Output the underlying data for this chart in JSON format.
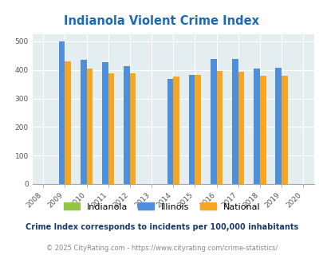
{
  "title": "Indianola Violent Crime Index",
  "years": [
    2009,
    2010,
    2011,
    2012,
    2014,
    2015,
    2016,
    2017,
    2018,
    2019
  ],
  "indianola": [
    0,
    0,
    0,
    0,
    0,
    0,
    0,
    0,
    0,
    0
  ],
  "illinois": [
    499,
    435,
    428,
    414,
    369,
    383,
    438,
    438,
    405,
    408
  ],
  "national": [
    430,
    405,
    387,
    387,
    376,
    383,
    397,
    394,
    379,
    379
  ],
  "bar_width": 0.28,
  "color_indianola": "#90c846",
  "color_illinois": "#4d8fdb",
  "color_national": "#f5a623",
  "bg_color": "#e4eef0",
  "xlim": [
    2007.5,
    2020.5
  ],
  "ylim": [
    0,
    525
  ],
  "yticks": [
    0,
    100,
    200,
    300,
    400,
    500
  ],
  "xticks": [
    2008,
    2009,
    2010,
    2011,
    2012,
    2013,
    2014,
    2015,
    2016,
    2017,
    2018,
    2019,
    2020
  ],
  "title_color": "#1a6ab5",
  "footnote1": "Crime Index corresponds to incidents per 100,000 inhabitants",
  "footnote2": "© 2025 CityRating.com - https://www.cityrating.com/crime-statistics/",
  "footnote1_color": "#1a3a6a",
  "footnote2_color": "#888888",
  "legend_labels": [
    "Indianola",
    "Illinois",
    "National"
  ]
}
